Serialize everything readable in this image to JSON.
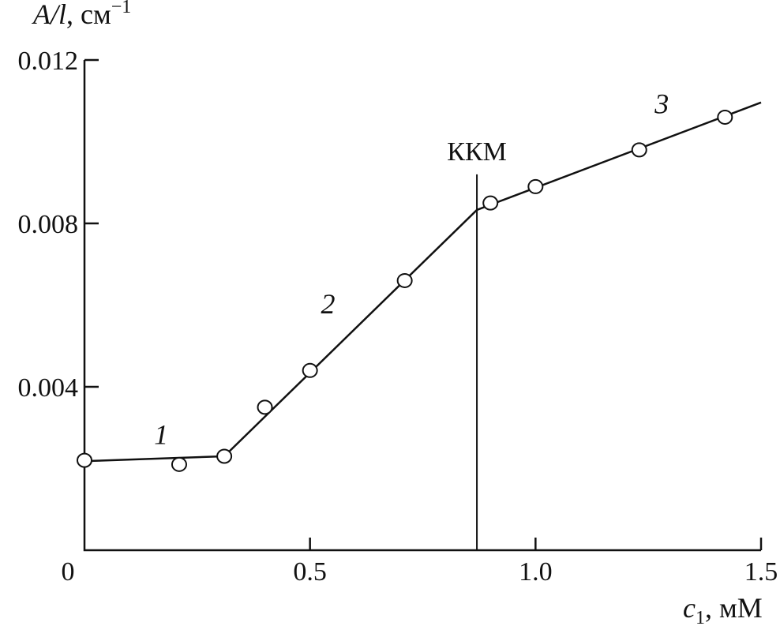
{
  "chart_data": {
    "type": "line",
    "title": "",
    "xlabel": "c1, мМ",
    "xlabel_parts": {
      "var": "c",
      "sub": "1",
      "unit": ", мМ"
    },
    "ylabel": "A/l, см−1",
    "ylabel_parts": {
      "var": "A/l",
      "unit": ", см",
      "sup": "−1"
    },
    "xlim": [
      0,
      1.5
    ],
    "ylim": [
      0,
      0.012
    ],
    "x_ticks": [
      {
        "v": 0.5,
        "label": "0.5"
      },
      {
        "v": 1.0,
        "label": "1.0"
      },
      {
        "v": 1.5,
        "label": "1.5"
      }
    ],
    "y_ticks": [
      {
        "v": 0.004,
        "label": "0.004"
      },
      {
        "v": 0.008,
        "label": "0.008"
      },
      {
        "v": 0.012,
        "label": "0.012"
      }
    ],
    "origin_label": "0",
    "grid": false,
    "points": {
      "x": [
        0,
        0.21,
        0.31,
        0.4,
        0.5,
        0.71,
        0.9,
        1.0,
        1.23,
        1.42
      ],
      "y": [
        0.0022,
        0.0021,
        0.0023,
        0.0035,
        0.0044,
        0.0066,
        0.0085,
        0.0089,
        0.0098,
        0.0106
      ]
    },
    "segments": [
      {
        "label": "1",
        "from": [
          0,
          0.00218
        ],
        "to": [
          0.31,
          0.0023
        ],
        "label_at": [
          0.17,
          0.0026
        ]
      },
      {
        "label": "2",
        "from": [
          0.31,
          0.0023
        ],
        "to": [
          0.87,
          0.00833
        ],
        "label_at": [
          0.54,
          0.0058
        ]
      },
      {
        "label": "3",
        "from": [
          0.87,
          0.00833
        ],
        "to": [
          1.5,
          0.01096
        ],
        "label_at": [
          1.28,
          0.0107
        ]
      }
    ],
    "annotation": {
      "label": "ККМ",
      "x": 0.87,
      "y_top": 0.0092
    }
  }
}
